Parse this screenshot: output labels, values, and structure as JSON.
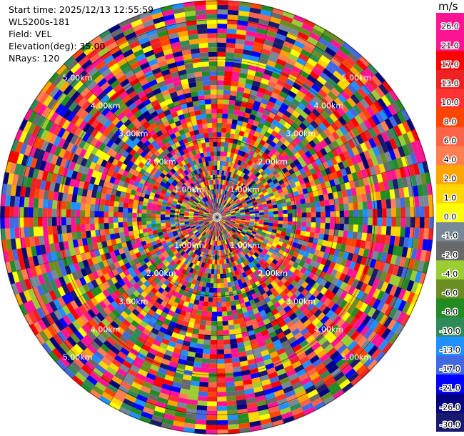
{
  "info": {
    "start_time": "Start time: 2025/12/13 12:55:59",
    "instrument": "WLS200s-181",
    "field": "Field: VEL",
    "elevation": "Elevation(deg): 35.00",
    "nrays": "NRays: 120"
  },
  "chart_data": {
    "type": "heatmap",
    "projection": "polar-ppi",
    "field": "VEL",
    "units": "m/s",
    "n_rays": 120,
    "elevation_deg": 35.0,
    "range_rings_km": [
      1.0,
      2.0,
      3.0,
      4.0,
      5.0
    ],
    "range_ring_labels": [
      "1.00km",
      "2.00km",
      "3.00km",
      "4.00km",
      "5.00km"
    ],
    "max_range_km": 5.5,
    "colorbar": {
      "unit": "m/s",
      "vmin": -30,
      "vmax": 30,
      "tick_labels": [
        "26.0",
        "21.0",
        "17.0",
        "13.0",
        "10.0",
        "8.0",
        "6.0",
        "4.0",
        "2.0",
        "1.0",
        "0.0",
        "-1.0",
        "-2.0",
        "-4.0",
        "-6.0",
        "-8.0",
        "-10.0",
        "-13.0",
        "-17.0",
        "-21.0",
        "-26.0",
        "-30.0"
      ],
      "colors": [
        "#ff1493",
        "#ff1493",
        "#ff0000",
        "#ee2222",
        "#ff3333",
        "#ff4500",
        "#ff6347",
        "#ff7f50",
        "#ffa500",
        "#ffd700",
        "#ffff00",
        "#778899",
        "#696969",
        "#9acd32",
        "#6b8e23",
        "#228b22",
        "#2e8b57",
        "#1e90ff",
        "#4169e1",
        "#0000ff",
        "#000080",
        "#191970"
      ]
    }
  }
}
